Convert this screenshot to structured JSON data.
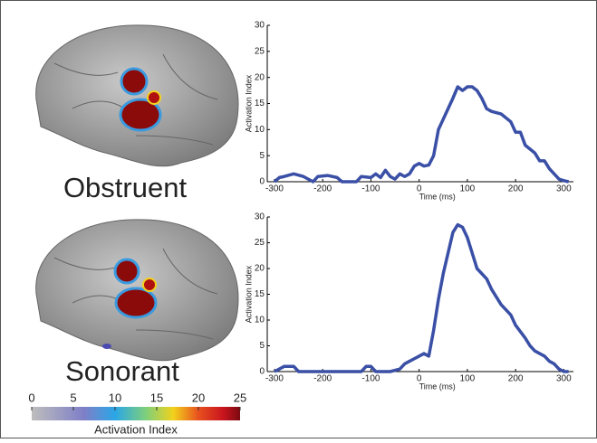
{
  "chart_data": [
    {
      "type": "line",
      "xlabel": "Time (ms)",
      "ylabel": "Activation Index",
      "color": "#3a4fa6",
      "xlim": [
        -315,
        320
      ],
      "ylim": [
        0,
        30
      ],
      "xticks": [
        -300,
        -200,
        -100,
        0,
        100,
        200,
        300
      ],
      "yticks": [
        0,
        5,
        10,
        15,
        20,
        25,
        30
      ],
      "x": [
        -300,
        -290,
        -280,
        -260,
        -240,
        -230,
        -220,
        -210,
        -190,
        -170,
        -160,
        -130,
        -120,
        -100,
        -90,
        -80,
        -70,
        -60,
        -50,
        -40,
        -30,
        -20,
        -10,
        0,
        10,
        20,
        30,
        40,
        50,
        60,
        70,
        80,
        90,
        100,
        110,
        120,
        130,
        140,
        150,
        170,
        190,
        200,
        210,
        220,
        240,
        250,
        260,
        270,
        280,
        290,
        300,
        310
      ],
      "values": [
        0,
        0.8,
        1,
        1.5,
        1,
        0.5,
        0,
        1,
        1.2,
        0.8,
        0,
        0,
        1,
        0.8,
        1.5,
        0.8,
        2.2,
        1,
        0.5,
        1.5,
        1,
        1.5,
        3,
        3.5,
        3,
        3.2,
        5,
        10,
        12,
        14,
        16,
        18.2,
        17.5,
        18.2,
        18.2,
        17.5,
        16,
        14,
        13.5,
        13,
        11.5,
        9.5,
        9.5,
        7,
        5.5,
        4,
        4,
        2.5,
        1.5,
        0.5,
        0.2,
        0
      ]
    },
    {
      "type": "line",
      "xlabel": "Time (ms)",
      "ylabel": "Activation Index",
      "color": "#3a4fa6",
      "xlim": [
        -315,
        320
      ],
      "ylim": [
        0,
        30
      ],
      "xticks": [
        -300,
        -200,
        -100,
        0,
        100,
        200,
        300
      ],
      "yticks": [
        0,
        5,
        10,
        15,
        20,
        25,
        30
      ],
      "x": [
        -300,
        -290,
        -280,
        -260,
        -250,
        -200,
        -150,
        -120,
        -110,
        -100,
        -90,
        -60,
        -40,
        -30,
        -20,
        -10,
        0,
        10,
        20,
        30,
        40,
        50,
        60,
        70,
        80,
        90,
        100,
        110,
        120,
        140,
        150,
        170,
        190,
        200,
        220,
        230,
        240,
        260,
        270,
        280,
        290,
        300,
        310
      ],
      "values": [
        0,
        0.5,
        1,
        1,
        0,
        0,
        0,
        0,
        1,
        1,
        0,
        0,
        0.5,
        1.5,
        2,
        2.5,
        3,
        3.5,
        3,
        8,
        14,
        19,
        23,
        27,
        28.5,
        28,
        26,
        23,
        20,
        18,
        16,
        13,
        11,
        9,
        6.5,
        5,
        4,
        3,
        2,
        1.5,
        0.5,
        0,
        0
      ]
    }
  ],
  "panels": [
    "Obstruent",
    "Sonorant"
  ],
  "colorbar": {
    "label": "Activation Index",
    "range": [
      0,
      25
    ],
    "ticks": [
      0,
      5,
      10,
      15,
      20,
      25
    ]
  }
}
